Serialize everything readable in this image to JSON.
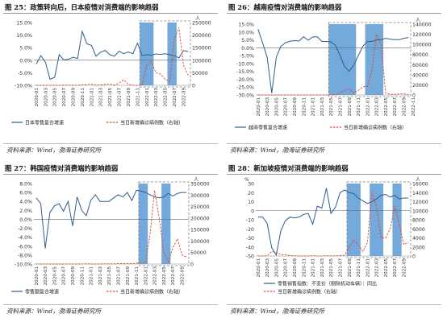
{
  "source_text": "资料来源：Wind，渤海证券研究所",
  "colors": {
    "line_blue": "#2f5d8e",
    "line_red": "#e04a2f",
    "band": "#5b9bd5",
    "box": "#7f7f7f",
    "axis_text": "#333333"
  },
  "chart_data": [
    {
      "id": "fig25",
      "type": "line",
      "title": "图 25：政策转向后，日本疫情对消费端的影响趋弱",
      "x": [
        "2020-01",
        "2020-02",
        "2020-03",
        "2020-04",
        "2020-05",
        "2020-06",
        "2020-07",
        "2020-08",
        "2020-09",
        "2020-10",
        "2020-11",
        "2020-12",
        "2021-01",
        "2021-02",
        "2021-03",
        "2021-04",
        "2021-05",
        "2021-06",
        "2021-07",
        "2021-08",
        "2021-09",
        "2021-10",
        "2021-11",
        "2021-12",
        "2022-01",
        "2022-02",
        "2022-03",
        "2022-04",
        "2022-05",
        "2022-06",
        "2022-07",
        "2022-08",
        "2022-09",
        "2022-10"
      ],
      "x_tick_labels": [
        "2020-01",
        "2020-03",
        "2020-05",
        "2020-07",
        "2020-09",
        "2020-11",
        "2021-01",
        "2021-03",
        "2021-05",
        "2021-07",
        "2021-09",
        "2021-11",
        "2022-01",
        "2022-03",
        "2022-05",
        "2022-07",
        "2022-09"
      ],
      "y_left": {
        "min": -10,
        "max": 15,
        "step": 5,
        "tick_labels": [
          "-10.0%",
          "-5.0%",
          "0.0%",
          "5.0%",
          "10.0%",
          "15.0%"
        ]
      },
      "y_right": {
        "min": 0,
        "max": 250000,
        "step": 50000,
        "unit_label": "人",
        "tick_labels": [
          "0",
          "50000",
          "100000",
          "150000",
          "200000",
          "250000"
        ]
      },
      "shaded_x_ranges": [
        [
          "2021-12",
          "2022-02"
        ],
        [
          "2022-06",
          "2022-07"
        ]
      ],
      "highlight_x_range": [
        "2021-12",
        "2022-10"
      ],
      "series": [
        {
          "name": "日本零售复合增速",
          "axis": "left",
          "style": "solid",
          "values": [
            -1.5,
            1.8,
            -0.8,
            -7.6,
            -6.8,
            2.2,
            0.1,
            0.4,
            1.2,
            0.7,
            11.5,
            6.6,
            5.9,
            1.6,
            3.2,
            3.9,
            2.2,
            1.6,
            3.6,
            2.6,
            3.3,
            2.6,
            6.8,
            1.8,
            2.2,
            2.0,
            2.5,
            2.3,
            2.6,
            2.2,
            1.8,
            0.9,
            3.8,
            3.5
          ]
        },
        {
          "name": "当日新增确诊病例数（右轴）",
          "axis": "right",
          "style": "dashed",
          "values": [
            0,
            0,
            50,
            400,
            50,
            30,
            600,
            800,
            400,
            500,
            1800,
            3000,
            5500,
            800,
            1500,
            4500,
            5000,
            1500,
            8000,
            22000,
            4000,
            400,
            100,
            400,
            80000,
            95000,
            50000,
            45000,
            25000,
            15000,
            180000,
            230000,
            80000,
            40000
          ]
        }
      ]
    },
    {
      "id": "fig26",
      "type": "line",
      "title": "图 26：越南疫情对消费端的影响趋弱",
      "x": [
        "2020-01",
        "2020-02",
        "2020-03",
        "2020-04",
        "2020-05",
        "2020-06",
        "2020-07",
        "2020-08",
        "2020-09",
        "2020-10",
        "2020-11",
        "2020-12",
        "2021-01",
        "2021-02",
        "2021-03",
        "2021-04",
        "2021-05",
        "2021-06",
        "2021-07",
        "2021-08",
        "2021-09",
        "2021-10",
        "2021-11",
        "2021-12",
        "2022-01",
        "2022-02",
        "2022-03",
        "2022-04",
        "2022-05",
        "2022-06",
        "2022-07",
        "2022-08",
        "2022-09",
        "2022-10"
      ],
      "x_tick_labels": [
        "2020-01",
        "2020-03",
        "2020-05",
        "2020-07",
        "2020-09",
        "2020-11",
        "2021-01",
        "2021-03",
        "2021-05",
        "2021-07",
        "2021-09",
        "2021-11",
        "2022-01",
        "2022-03",
        "2022-05",
        "2022-07",
        "2022-09",
        "2022-11"
      ],
      "y_left": {
        "min": -30,
        "max": 15,
        "step": 5,
        "tick_labels": [
          "-30.0%",
          "-25.0%",
          "-20.0%",
          "-15.0%",
          "-10.0%",
          "-5.0%",
          "0.0%",
          "5.0%",
          "10.0%",
          "15.0%"
        ]
      },
      "y_right": {
        "min": 0,
        "max": 140000,
        "step": 20000,
        "unit_label": "人",
        "tick_labels": [
          "0",
          "20000",
          "40000",
          "60000",
          "80000",
          "100000",
          "120000",
          "140000"
        ]
      },
      "shaded_x_ranges": [
        [
          "2021-05",
          "2021-10"
        ],
        [
          "2022-01",
          "2022-04"
        ]
      ],
      "highlight_x_range": [
        "2021-05",
        "2022-10"
      ],
      "series": [
        {
          "name": "越南零售复合增速",
          "axis": "left",
          "style": "solid",
          "values": [
            11.8,
            3.0,
            -6.0,
            -28.8,
            -6.0,
            1.0,
            3.2,
            4.2,
            4.5,
            4.3,
            7.0,
            4.8,
            6.8,
            7.0,
            4.0,
            4.0,
            3.8,
            1.5,
            -5.0,
            -12.0,
            -15.0,
            -11.0,
            -5.0,
            1.0,
            4.0,
            4.0,
            5.0,
            5.2,
            6.0,
            5.5,
            5.2,
            5.2,
            6.0,
            6.5
          ]
        },
        {
          "name": "当日新增确诊病例数（右轴）",
          "axis": "right",
          "style": "dashed",
          "values": [
            0,
            0,
            10,
            5,
            0,
            0,
            10,
            20,
            5,
            5,
            5,
            10,
            20,
            30,
            10,
            20,
            200,
            400,
            4000,
            9000,
            12000,
            4000,
            9000,
            16000,
            17000,
            50000,
            120000,
            100000,
            5000,
            1000,
            1500,
            2000,
            2000,
            1000
          ]
        }
      ]
    },
    {
      "id": "fig27",
      "type": "line",
      "title": "图 27：韩国疫情对消费端的影响趋弱",
      "x": [
        "2020-01",
        "2020-02",
        "2020-03",
        "2020-04",
        "2020-05",
        "2020-06",
        "2020-07",
        "2020-08",
        "2020-09",
        "2020-10",
        "2020-11",
        "2020-12",
        "2021-01",
        "2021-02",
        "2021-03",
        "2021-04",
        "2021-05",
        "2021-06",
        "2021-07",
        "2021-08",
        "2021-09",
        "2021-10",
        "2021-11",
        "2021-12",
        "2022-01",
        "2022-02",
        "2022-03",
        "2022-04",
        "2022-05",
        "2022-06",
        "2022-07",
        "2022-08",
        "2022-09",
        "2022-10"
      ],
      "x_tick_labels": [
        "2020-01",
        "2020-03",
        "2020-05",
        "2020-07",
        "2020-09",
        "2020-11",
        "2021-01",
        "2021-03",
        "2021-05",
        "2021-07",
        "2021-09",
        "2021-11",
        "2022-01",
        "2022-03",
        "2022-05",
        "2022-07",
        "2022-09"
      ],
      "y_left": {
        "min": -10,
        "max": 8,
        "step": 2,
        "tick_labels": [
          "-10.0%",
          "-8.0%",
          "-6.0%",
          "-4.0%",
          "-2.0%",
          "0.0%",
          "2.0%",
          "4.0%",
          "6.0%",
          "8.0%"
        ]
      },
      "y_right": {
        "min": 0,
        "max": 350000,
        "step": 50000,
        "unit_label": "人",
        "tick_labels": [
          "0",
          "50000",
          "100000",
          "150000",
          "200000",
          "250000",
          "300000",
          "350000"
        ]
      },
      "shaded_x_ranges": [
        [
          "2021-12",
          "2022-01"
        ],
        [
          "2022-05",
          "2022-06"
        ]
      ],
      "highlight_x_range": [
        "2021-12",
        "2022-10"
      ],
      "series": [
        {
          "name": "零售额复合增速",
          "axis": "left",
          "style": "solid",
          "values": [
            4.8,
            3.5,
            -6.5,
            1.5,
            3.0,
            3.5,
            1.8,
            4.0,
            -1.5,
            5.0,
            2.0,
            0.8,
            4.3,
            5.5,
            4.0,
            4.0,
            4.0,
            4.8,
            5.5,
            5.0,
            6.0,
            4.2,
            6.5,
            6.3,
            6.0,
            5.5,
            5.0,
            4.8,
            5.0,
            5.8,
            5.2,
            5.8,
            6.0,
            6.0
          ]
        },
        {
          "name": "当日新增确诊病例数（右轴）",
          "axis": "right",
          "style": "dashed",
          "values": [
            0,
            400,
            300,
            50,
            30,
            50,
            60,
            200,
            100,
            100,
            400,
            1000,
            500,
            400,
            450,
            700,
            600,
            600,
            1600,
            1800,
            2500,
            1800,
            3500,
            7000,
            5000,
            130000,
            320000,
            200000,
            50000,
            10000,
            70000,
            110000,
            40000,
            30000
          ]
        }
      ]
    },
    {
      "id": "fig28",
      "type": "line",
      "title": "图 28：新加坡疫情对消费端的影响趋弱",
      "x": [
        "2020-01",
        "2020-02",
        "2020-03",
        "2020-04",
        "2020-05",
        "2020-06",
        "2020-07",
        "2020-08",
        "2020-09",
        "2020-10",
        "2020-11",
        "2020-12",
        "2021-01",
        "2021-02",
        "2021-03",
        "2021-04",
        "2021-05",
        "2021-06",
        "2021-07",
        "2021-08",
        "2021-09",
        "2021-10",
        "2021-11",
        "2021-12",
        "2022-01",
        "2022-02",
        "2022-03",
        "2022-04",
        "2022-05",
        "2022-06",
        "2022-07",
        "2022-08",
        "2022-09",
        "2022-10"
      ],
      "x_tick_labels": [
        "2020-01",
        "2020-03",
        "2020-05",
        "2020-07",
        "2020-09",
        "2020-11",
        "2021-01",
        "2021-03",
        "2021-05",
        "2021-07",
        "2021-09",
        "2021-11",
        "2022-01",
        "2022-03",
        "2022-05",
        "2022-07",
        "2022-09"
      ],
      "y_left": {
        "min": -50,
        "max": 30,
        "step": 10,
        "unit_label": "%",
        "tick_labels": [
          "-50",
          "-40",
          "-30",
          "-20",
          "-10",
          "0",
          "10",
          "20",
          "30"
        ]
      },
      "y_right": {
        "min": 0,
        "max": 16000,
        "step": 2000,
        "unit_label": "人",
        "tick_labels": [
          "0",
          "2000",
          "4000",
          "6000",
          "8000",
          "10000",
          "12000",
          "14000",
          "16000"
        ]
      },
      "shaded_x_ranges": [
        [
          "2021-09",
          "2021-11"
        ],
        [
          "2022-02",
          "2022-04"
        ],
        [
          "2022-07",
          "2022-08"
        ]
      ],
      "highlight_x_range": [
        "2021-09",
        "2022-10"
      ],
      "series": [
        {
          "name": "零售销售指数：不变价（剔除机动车辆）：同比",
          "axis": "left",
          "style": "solid",
          "values": [
            -7.0,
            -7.0,
            -14.0,
            -41.0,
            -49.0,
            -22.0,
            -11.0,
            -7.0,
            -8.0,
            -7.0,
            -4.0,
            -3.0,
            -15.0,
            5.0,
            3.0,
            25.0,
            -3.0,
            4.0,
            20.0,
            23.0,
            20.0,
            19.0,
            14.0,
            11.0,
            8.0,
            10.0,
            13.0,
            17.0,
            18.0,
            15.0,
            17.0,
            13.0,
            14.0,
            14.0
          ]
        },
        {
          "name": "当日新增确诊病例数（右轴）",
          "axis": "right",
          "style": "dashed",
          "values": [
            0,
            10,
            50,
            1000,
            800,
            300,
            300,
            100,
            30,
            10,
            5,
            10,
            30,
            10,
            20,
            30,
            40,
            20,
            100,
            200,
            2000,
            3500,
            2500,
            1000,
            3000,
            14000,
            11000,
            4000,
            4000,
            6000,
            11000,
            7000,
            2500,
            3000
          ]
        }
      ]
    }
  ]
}
